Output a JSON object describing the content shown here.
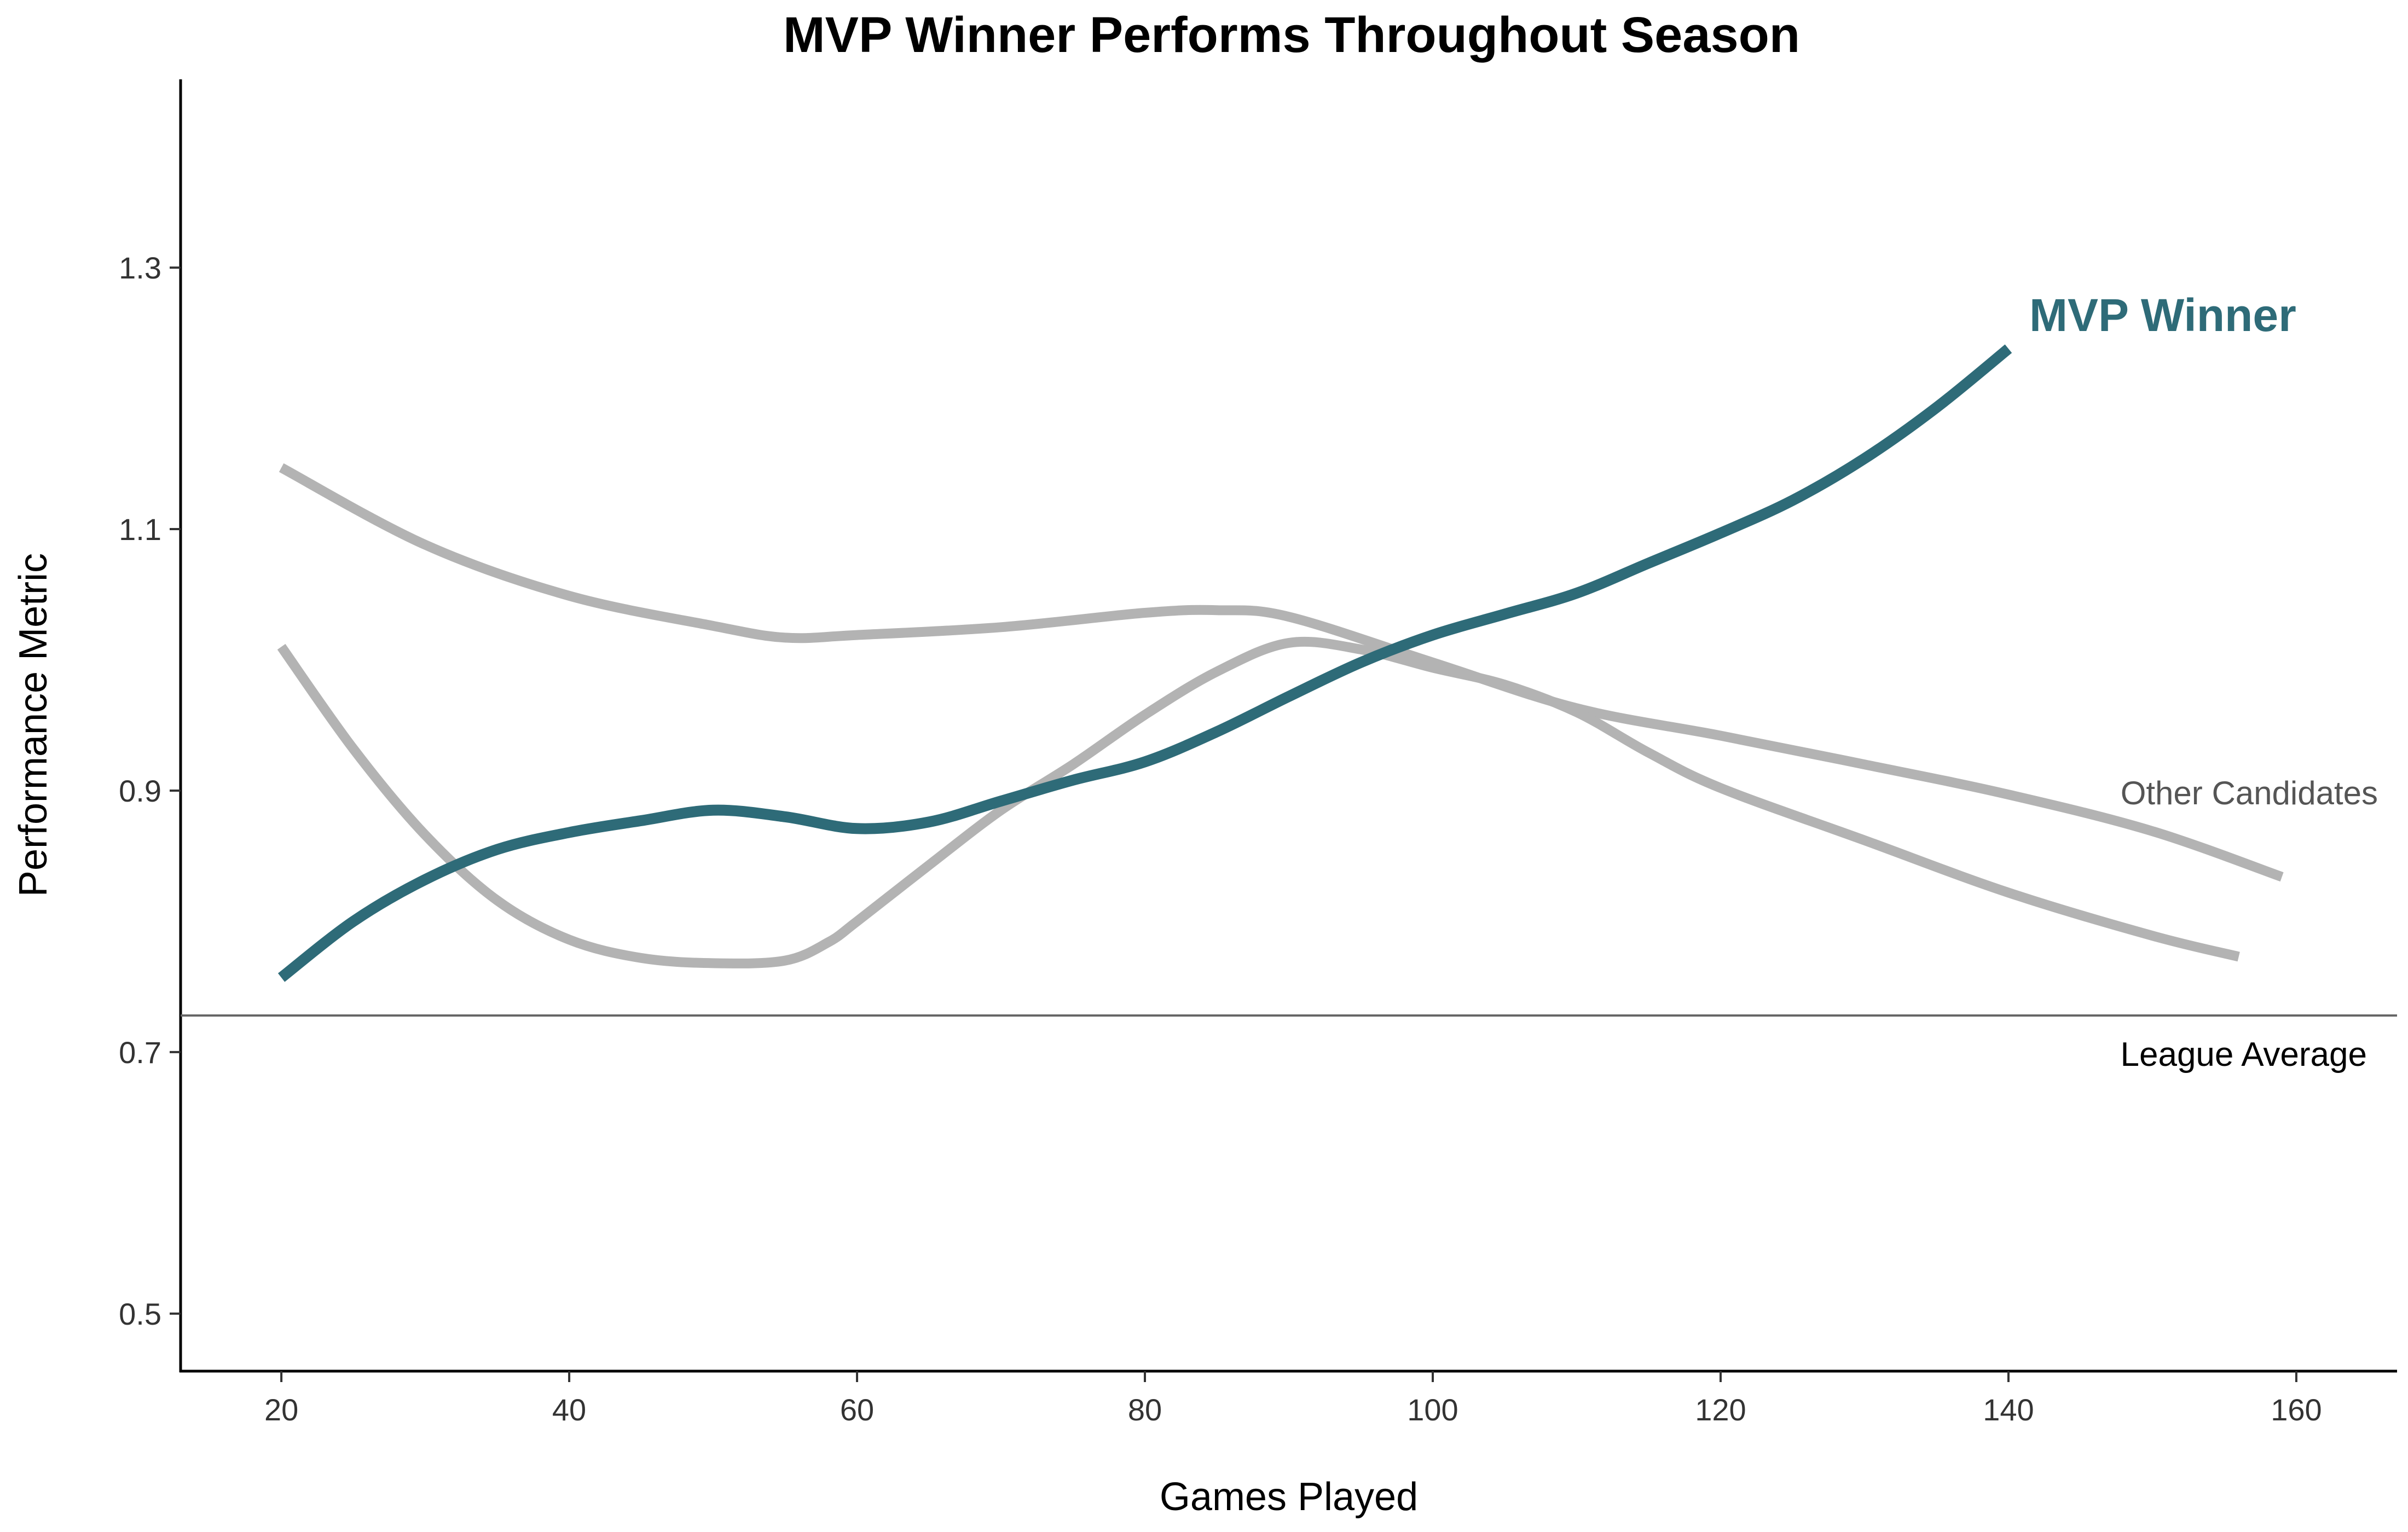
{
  "chart_data": {
    "type": "line",
    "title": "MVP Winner Performs Throughout Season",
    "xlabel": "Games Played",
    "ylabel": "Performance Metric",
    "xlim": [
      13,
      167
    ],
    "ylim": [
      0.456,
      1.444
    ],
    "xticks": [
      20,
      40,
      60,
      80,
      100,
      120,
      140,
      160
    ],
    "yticks": [
      0.5,
      0.7,
      0.9,
      1.1,
      1.3
    ],
    "ytick_labels": [
      "0.5",
      "0.7",
      "0.9",
      "1.1",
      "1.3"
    ],
    "grid": false,
    "colors": {
      "highlight": "#2e6b78",
      "other": "#b3b3b3",
      "reference": "#666666",
      "other_label": "#555555"
    },
    "reference_line": {
      "y": 0.728,
      "label": "League Average"
    },
    "series": [
      {
        "name": "MVP Winner",
        "highlight": true,
        "x": [
          20,
          25,
          30,
          35,
          40,
          45,
          50,
          55,
          60,
          65,
          70,
          75,
          80,
          85,
          90,
          95,
          100,
          105,
          110,
          115,
          120,
          125,
          130,
          135,
          140
        ],
        "y": [
          0.757,
          0.8,
          0.832,
          0.855,
          0.868,
          0.877,
          0.885,
          0.88,
          0.871,
          0.876,
          0.892,
          0.908,
          0.922,
          0.945,
          0.972,
          0.998,
          1.019,
          1.035,
          1.051,
          1.074,
          1.097,
          1.122,
          1.154,
          1.193,
          1.238
        ]
      },
      {
        "name": "Other Candidates",
        "x": [
          20,
          30,
          40,
          50,
          55,
          60,
          70,
          80,
          85,
          90,
          100,
          110,
          120,
          130,
          140,
          150,
          159
        ],
        "y": [
          1.147,
          1.088,
          1.049,
          1.026,
          1.017,
          1.019,
          1.025,
          1.036,
          1.038,
          1.033,
          0.998,
          0.963,
          0.942,
          0.92,
          0.897,
          0.869,
          0.834
        ]
      },
      {
        "x": [
          20,
          25,
          30,
          35,
          40,
          45,
          50,
          55,
          58,
          60,
          65,
          70,
          75,
          80,
          85,
          90,
          95,
          100,
          105,
          110,
          115,
          120,
          130,
          140,
          150,
          156
        ],
        "y": [
          1.01,
          0.932,
          0.866,
          0.816,
          0.786,
          0.772,
          0.768,
          0.77,
          0.784,
          0.8,
          0.843,
          0.885,
          0.92,
          0.958,
          0.991,
          1.013,
          1.008,
          0.994,
          0.981,
          0.96,
          0.929,
          0.902,
          0.862,
          0.822,
          0.789,
          0.773
        ]
      }
    ]
  }
}
